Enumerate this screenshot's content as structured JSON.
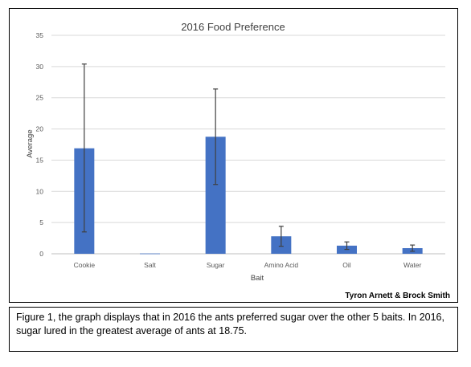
{
  "chart_data": {
    "type": "bar",
    "title": "2016 Food Preference",
    "xlabel": "Bait",
    "ylabel": "Average",
    "categories": [
      "Cookie",
      "Salt",
      "Sugar",
      "Amino Acid",
      "Oil",
      "Water"
    ],
    "values": [
      16.9,
      0.05,
      18.75,
      2.8,
      1.3,
      0.9
    ],
    "error_low": [
      3.5,
      0.05,
      11.1,
      1.2,
      0.7,
      0.4
    ],
    "error_high": [
      30.4,
      0.05,
      26.4,
      4.4,
      1.9,
      1.4
    ],
    "ylim": [
      0,
      35
    ],
    "yticks": [
      0,
      5,
      10,
      15,
      20,
      25,
      30,
      35
    ],
    "grid": true,
    "bar_color": "#4472c4"
  },
  "credit": "Tyron Arnett & Brock Smith",
  "caption": "Figure 1, the graph displays that in 2016 the ants preferred sugar over the other 5 baits. In 2016, sugar lured in the greatest average of ants at 18.75."
}
